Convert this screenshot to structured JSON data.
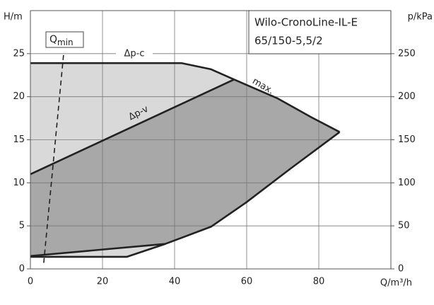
{
  "chart_data": {
    "type": "line",
    "product_box": [
      "Wilo-CronoLine-IL-E",
      "65/150-5,5/2"
    ],
    "x_label": "Q/m³/h",
    "y_label": "H/m",
    "y2_label": "p/kPa",
    "q_min_label": {
      "main": "Q",
      "sub": "min"
    },
    "xlim": [
      0,
      100
    ],
    "xticks": [
      0,
      20,
      40,
      60,
      80
    ],
    "ylim": [
      0,
      30
    ],
    "yticks": [
      0,
      5,
      10,
      15,
      20,
      25
    ],
    "y2lim": [
      0,
      300
    ],
    "y2ticks": [
      0,
      50,
      100,
      150,
      200,
      250
    ],
    "grid": true,
    "region_colors": {
      "constant": "#d9d9d9",
      "variable": "#a8a8a8"
    },
    "series": [
      {
        "name": "Δp-c",
        "color": "#222222",
        "x": [
          0,
          42,
          50,
          56.5
        ],
        "values": [
          23.9,
          23.9,
          23.2,
          22.0
        ]
      },
      {
        "name": "max.",
        "color": "#222222",
        "x": [
          56.5,
          68.6,
          78,
          85.8
        ],
        "values": [
          22.0,
          19.8,
          17.6,
          15.9
        ]
      },
      {
        "color": "#222222",
        "x": [
          85.8,
          72,
          59.8,
          50.1,
          37.4,
          26.7,
          0
        ],
        "values": [
          15.9,
          11.6,
          7.7,
          4.9,
          2.9,
          1.4,
          1.4
        ]
      },
      {
        "name": "Δp-v",
        "color": "#222222",
        "x": [
          0,
          56.5
        ],
        "values": [
          11.0,
          22.0
        ]
      },
      {
        "color": "#222222",
        "x": [
          0,
          37.4
        ],
        "values": [
          1.5,
          2.9
        ]
      },
      {
        "color": "#222222",
        "dashed": true,
        "x": [
          3.7,
          9.2
        ],
        "values": [
          0.7,
          24.9
        ]
      }
    ]
  }
}
